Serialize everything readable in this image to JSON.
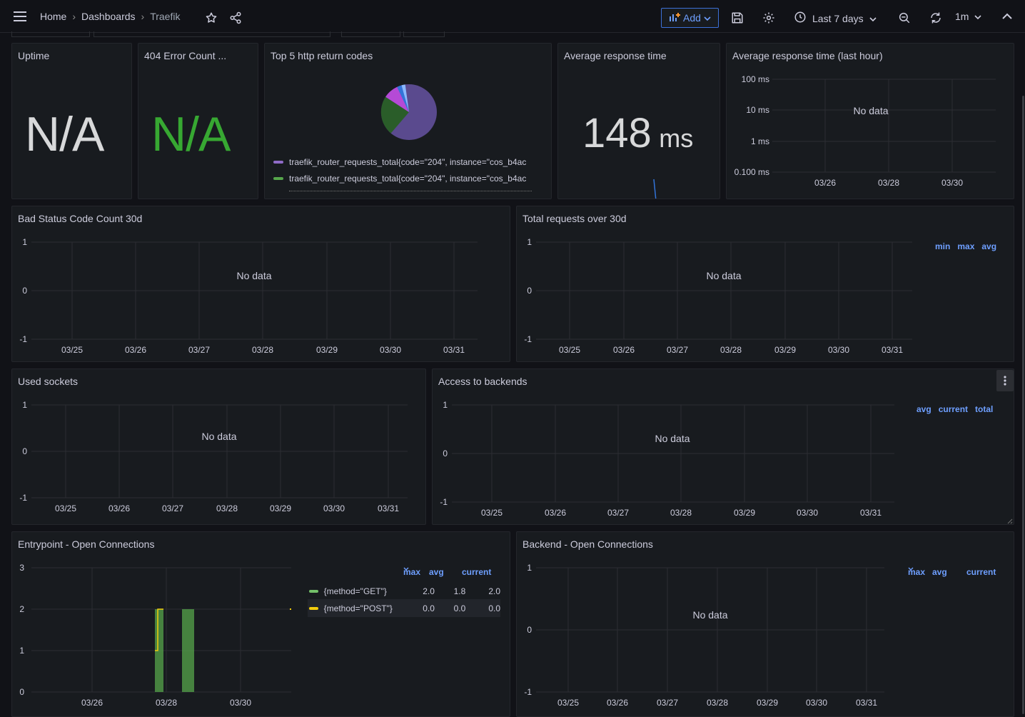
{
  "breadcrumb": {
    "home": "Home",
    "dashboards": "Dashboards",
    "current": "Traefik"
  },
  "toolbar": {
    "add_label": "Add",
    "time_range": "Last 7 days",
    "refresh_interval": "1m"
  },
  "colors": {
    "accent": "#6e9fff",
    "green": "#56a64b",
    "yellow": "#f2cc0c",
    "purple": "#8f6bc7",
    "na_green": "#37a832"
  },
  "panels": {
    "uptime": {
      "title": "Uptime",
      "value": "N/A"
    },
    "errors404": {
      "title": "404 Error Count ...",
      "value": "N/A"
    },
    "top5": {
      "title": "Top 5 http return codes",
      "legend": [
        "traefik_router_requests_total{code=\"204\", instance=\"cos_b4ac",
        "traefik_router_requests_total{code=\"204\", instance=\"cos_b4ac"
      ]
    },
    "avg_resp": {
      "title": "Average response time",
      "value": "148",
      "unit": "ms"
    },
    "avg_resp_hour": {
      "title": "Average response time (last hour)",
      "nodata": "No data",
      "yticks": [
        "100 ms",
        "10 ms",
        "1 ms",
        "0.100 ms"
      ],
      "xticks": [
        "03/26",
        "03/28",
        "03/30"
      ]
    },
    "bad_status": {
      "title": "Bad Status Code Count 30d",
      "nodata": "No data",
      "yticks": [
        "1",
        "0",
        "-1"
      ],
      "xticks": [
        "03/25",
        "03/26",
        "03/27",
        "03/28",
        "03/29",
        "03/30",
        "03/31"
      ]
    },
    "total_requests": {
      "title": "Total requests over 30d",
      "nodata": "No data",
      "yticks": [
        "1",
        "0",
        "-1"
      ],
      "xticks": [
        "03/25",
        "03/26",
        "03/27",
        "03/28",
        "03/29",
        "03/30",
        "03/31"
      ],
      "legend_headers": [
        "min",
        "max",
        "avg"
      ]
    },
    "used_sockets": {
      "title": "Used sockets",
      "nodata": "No data",
      "yticks": [
        "1",
        "0",
        "-1"
      ],
      "xticks": [
        "03/25",
        "03/26",
        "03/27",
        "03/28",
        "03/29",
        "03/30",
        "03/31"
      ]
    },
    "access_backends": {
      "title": "Access to backends",
      "nodata": "No data",
      "yticks": [
        "1",
        "0",
        "-1"
      ],
      "xticks": [
        "03/25",
        "03/26",
        "03/27",
        "03/28",
        "03/29",
        "03/30",
        "03/31"
      ],
      "legend_headers": [
        "avg",
        "current",
        "total"
      ]
    },
    "entrypoint": {
      "title": "Entrypoint - Open Connections",
      "yticks": [
        "3",
        "2",
        "1",
        "0"
      ],
      "xticks": [
        "03/26",
        "03/28",
        "03/30"
      ],
      "legend_headers": {
        "max": "max",
        "avg": "avg",
        "current": "current"
      },
      "series": [
        {
          "name": "{method=\"GET\"}",
          "max": "2.0",
          "avg": "1.8",
          "current": "2.0"
        },
        {
          "name": "{method=\"POST\"}",
          "max": "0.0",
          "avg": "0.0",
          "current": "0.0"
        }
      ]
    },
    "backend_conn": {
      "title": "Backend - Open Connections",
      "nodata": "No data",
      "yticks": [
        "1",
        "0",
        "-1"
      ],
      "xticks": [
        "03/25",
        "03/26",
        "03/27",
        "03/28",
        "03/29",
        "03/30",
        "03/31"
      ],
      "legend_headers": {
        "max": "max",
        "avg": "avg",
        "current": "current"
      }
    }
  }
}
